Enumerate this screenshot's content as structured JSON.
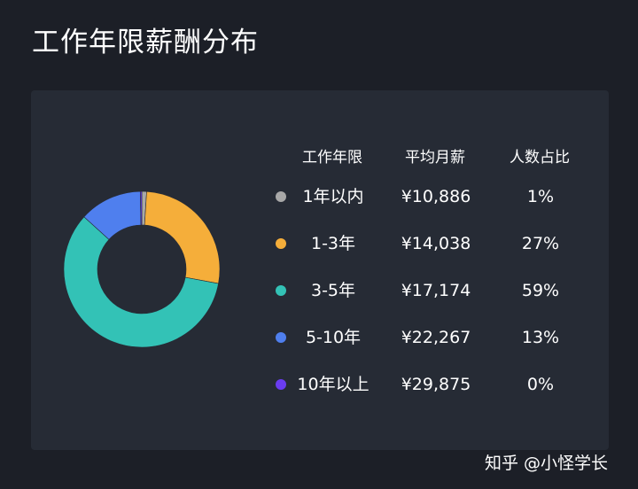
{
  "title": "工作年限薪酬分布",
  "watermark": "知乎 @小怪学长",
  "colors": {
    "background": "#1c1f27",
    "card": "#262b35"
  },
  "chart_data": {
    "type": "pie",
    "title": "工作年限薪酬分布",
    "columns": [
      "工作年限",
      "平均月薪",
      "人数占比"
    ],
    "rows": [
      {
        "label": "1年以内",
        "salary": "¥10,886",
        "share_label": "1%",
        "value": 1,
        "color": "#a8a8a8"
      },
      {
        "label": "1-3年",
        "salary": "¥14,038",
        "share_label": "27%",
        "value": 27,
        "color": "#f5ae3a"
      },
      {
        "label": "3-5年",
        "salary": "¥17,174",
        "share_label": "59%",
        "value": 59,
        "color": "#33c2b6"
      },
      {
        "label": "5-10年",
        "salary": "¥22,267",
        "share_label": "13%",
        "value": 13,
        "color": "#4f7fee"
      },
      {
        "label": "10年以上",
        "salary": "¥29,875",
        "share_label": "0%",
        "value": 0.3,
        "color": "#6a3cf0"
      }
    ]
  }
}
